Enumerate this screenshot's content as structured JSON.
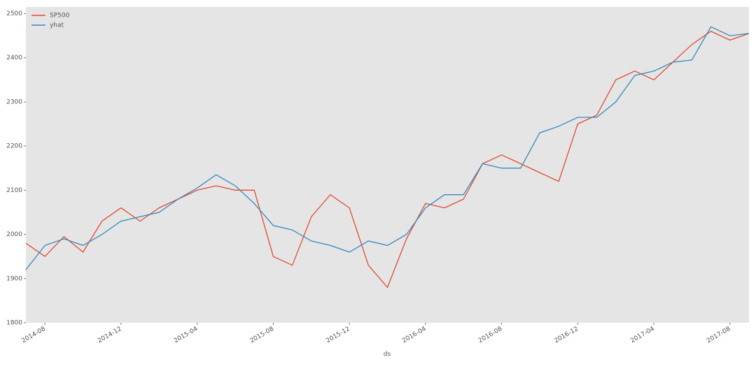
{
  "chart_data": {
    "type": "line",
    "x_label": "ds",
    "x": [
      "2014-07",
      "2014-08",
      "2014-09",
      "2014-10",
      "2014-11",
      "2014-12",
      "2015-01",
      "2015-02",
      "2015-03",
      "2015-04",
      "2015-05",
      "2015-06",
      "2015-07",
      "2015-08",
      "2015-09",
      "2015-10",
      "2015-11",
      "2015-12",
      "2016-01",
      "2016-02",
      "2016-03",
      "2016-04",
      "2016-05",
      "2016-06",
      "2016-07",
      "2016-08",
      "2016-09",
      "2016-10",
      "2016-11",
      "2016-12",
      "2017-01",
      "2017-02",
      "2017-03",
      "2017-04",
      "2017-05",
      "2017-06",
      "2017-07",
      "2017-08",
      "2017-09"
    ],
    "series": [
      {
        "name": "SP500",
        "color": "#e24a33",
        "values": [
          1980,
          1950,
          1995,
          1960,
          2030,
          2060,
          2030,
          2060,
          2080,
          2100,
          2110,
          2100,
          2100,
          1950,
          1930,
          2040,
          2090,
          2060,
          1930,
          1880,
          1990,
          2070,
          2060,
          2080,
          2160,
          2180,
          2160,
          2140,
          2120,
          2250,
          2270,
          2350,
          2370,
          2350,
          2390,
          2430,
          2460,
          2440,
          2455
        ]
      },
      {
        "name": "yhat",
        "color": "#348abd",
        "values": [
          1920,
          1975,
          1990,
          1975,
          2000,
          2030,
          2040,
          2050,
          2080,
          2105,
          2135,
          2110,
          2070,
          2020,
          2010,
          1985,
          1975,
          1960,
          1985,
          1975,
          2000,
          2060,
          2090,
          2090,
          2160,
          2150,
          2150,
          2230,
          2245,
          2265,
          2265,
          2300,
          2360,
          2370,
          2390,
          2395,
          2470,
          2450,
          2455
        ]
      }
    ],
    "xlim": [
      "2014-07",
      "2017-09"
    ],
    "xticks": [
      "2014-08",
      "2014-12",
      "2015-04",
      "2015-08",
      "2015-12",
      "2016-04",
      "2016-08",
      "2016-12",
      "2017-04",
      "2017-08"
    ],
    "ylim": [
      1800,
      2515
    ],
    "yticks": [
      1800,
      1900,
      2000,
      2100,
      2200,
      2300,
      2400,
      2500
    ],
    "legend": "upper-left"
  }
}
